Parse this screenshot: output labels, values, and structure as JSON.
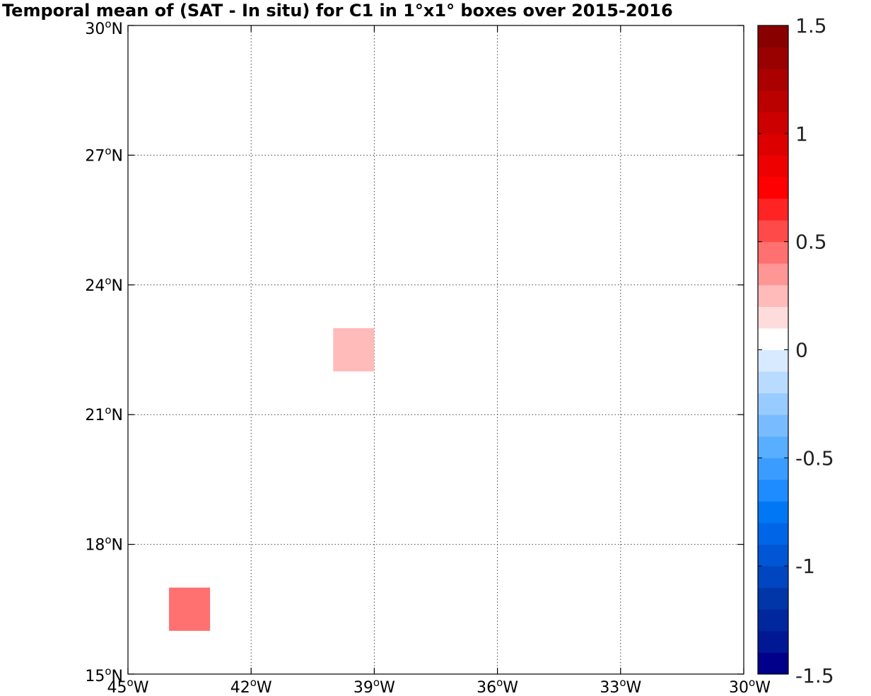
{
  "chart_data": {
    "type": "heatmap",
    "title": "Temporal mean of (SAT - In situ) for C1 in 1°x1° boxes over 2015-2016",
    "xlim": [
      -45,
      -30
    ],
    "ylim": [
      15,
      30
    ],
    "grid": true,
    "x_ticks": [
      {
        "value": -45,
        "deg": "45",
        "suffix": "W"
      },
      {
        "value": -42,
        "deg": "42",
        "suffix": "W"
      },
      {
        "value": -39,
        "deg": "39",
        "suffix": "W"
      },
      {
        "value": -36,
        "deg": "36",
        "suffix": "W"
      },
      {
        "value": -33,
        "deg": "33",
        "suffix": "W"
      },
      {
        "value": -30,
        "deg": "30",
        "suffix": "W"
      }
    ],
    "y_ticks": [
      {
        "value": 15,
        "deg": "15",
        "suffix": "N"
      },
      {
        "value": 18,
        "deg": "18",
        "suffix": "N"
      },
      {
        "value": 21,
        "deg": "21",
        "suffix": "N"
      },
      {
        "value": 24,
        "deg": "24",
        "suffix": "N"
      },
      {
        "value": 27,
        "deg": "27",
        "suffix": "N"
      },
      {
        "value": 30,
        "deg": "30",
        "suffix": "N"
      }
    ],
    "cells": [
      {
        "lon_min": -44,
        "lon_max": -43,
        "lat_min": 16,
        "lat_max": 17,
        "value": 0.45
      },
      {
        "lon_min": -40,
        "lon_max": -39,
        "lat_min": 22,
        "lat_max": 23,
        "value": 0.25
      }
    ],
    "colorbar": {
      "min": -1.5,
      "max": 1.5,
      "step": 0.1,
      "ticks": [
        {
          "value": 1.5,
          "label": "1.5"
        },
        {
          "value": 1,
          "label": "1"
        },
        {
          "value": 0.5,
          "label": "0.5"
        },
        {
          "value": 0,
          "label": "0"
        },
        {
          "value": -0.5,
          "label": "-0.5"
        },
        {
          "value": -1,
          "label": "-1"
        },
        {
          "value": -1.5,
          "label": "-1.5"
        }
      ],
      "colors_bottom_to_top": [
        "#00008b",
        "#001894",
        "#00279e",
        "#0036a8",
        "#0046c0",
        "#0056d4",
        "#0066e8",
        "#0078f4",
        "#1e8cff",
        "#3a9cff",
        "#58aeff",
        "#78bcff",
        "#98cbff",
        "#b8dbff",
        "#d8eaff",
        "#ffffff",
        "#ffdcdc",
        "#ffbaba",
        "#ff9696",
        "#ff7070",
        "#ff4a4a",
        "#ff2424",
        "#ff0000",
        "#ee0000",
        "#dc0000",
        "#cc0000",
        "#bb0000",
        "#aa0000",
        "#990000",
        "#880000"
      ]
    }
  }
}
